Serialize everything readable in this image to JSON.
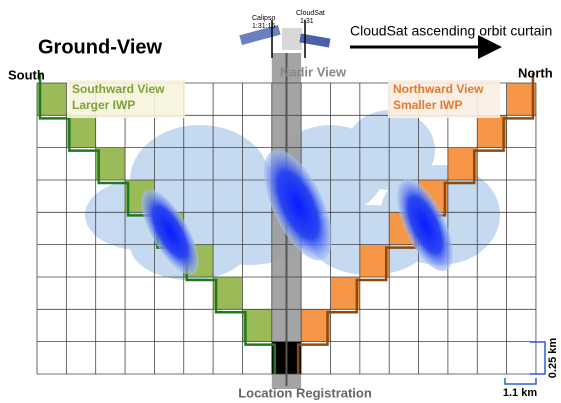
{
  "header": {
    "title": "Ground-View",
    "orbit_label": "CloudSat ascending orbit curtain"
  },
  "satellites": {
    "calipso": "Calipso",
    "calipso_time": "1:31:15",
    "cloudsat": "CloudSat",
    "cloudsat_time": "1:31"
  },
  "labels": {
    "nadir": "Nadir View",
    "south": "South",
    "north": "North",
    "southward": "Southward View",
    "southward_note": "Larger IWP",
    "northward": "Northward View",
    "northward_note": "Smaller IWP",
    "vertical_scale": "0.25 km",
    "horizontal_scale": "1.1 km",
    "registration": "Location Registration"
  }
}
